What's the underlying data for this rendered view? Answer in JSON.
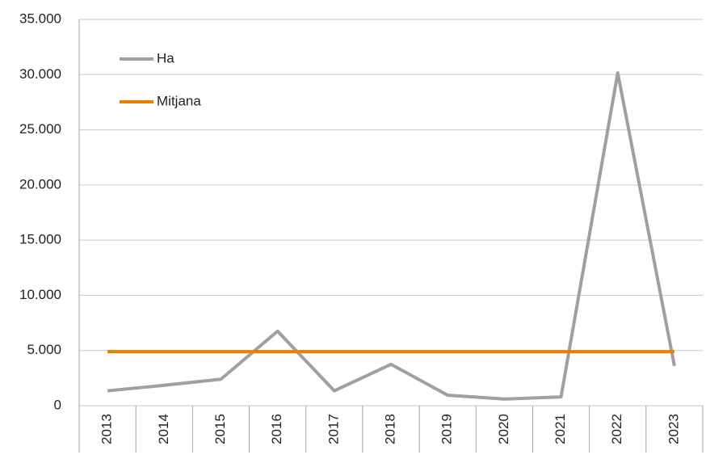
{
  "chart_data": {
    "type": "line",
    "categories": [
      "2013",
      "2014",
      "2015",
      "2016",
      "2017",
      "2018",
      "2019",
      "2020",
      "2021",
      "2022",
      "2023"
    ],
    "series": [
      {
        "name": "Ha",
        "color": "#a0a0a0",
        "values": [
          1350,
          1850,
          2400,
          6750,
          1350,
          3750,
          950,
          600,
          800,
          30150,
          3600
        ]
      },
      {
        "name": "Mitjana",
        "color": "#f07c00",
        "values": [
          4900,
          4900,
          4900,
          4900,
          4900,
          4900,
          4900,
          4900,
          4900,
          4900,
          4900
        ]
      }
    ],
    "ylim": [
      0,
      35000
    ],
    "yticks": [
      0,
      {
        "value": 5000,
        "label": "5.000"
      },
      {
        "value": 10000,
        "label": "10.000"
      },
      {
        "value": 15000,
        "label": "15.000"
      },
      {
        "value": 20000,
        "label": "20.000"
      },
      {
        "value": 25000,
        "label": "25.000"
      },
      {
        "value": 30000,
        "label": "30.000"
      },
      {
        "value": 35000,
        "label": "35.000"
      }
    ],
    "grid": true,
    "legend": "upper left"
  }
}
